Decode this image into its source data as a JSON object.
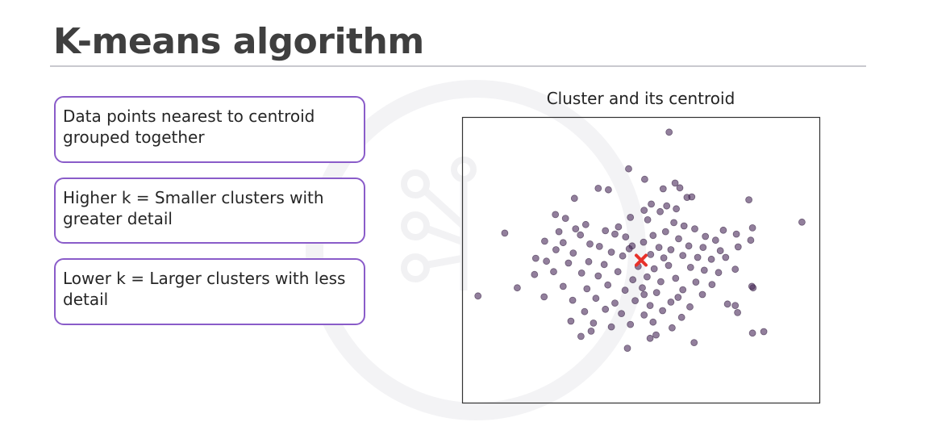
{
  "slide": {
    "title": "K-means algorithm",
    "points": [
      "Data points nearest to centroid grouped together",
      "Higher k = Smaller clusters with greater detail",
      "Lower k = Larger clusters with less detail"
    ]
  },
  "colors": {
    "accent_border": "#8a5cc9",
    "point": "#4a2a5a",
    "centroid": "#e8312a",
    "rule": "#c9c9cf"
  },
  "chart_data": {
    "type": "scatter",
    "title": "Cluster and its centroid",
    "xlabel": "",
    "ylabel": "",
    "xlim": [
      -3.0,
      3.0
    ],
    "ylim": [
      -3.0,
      3.0
    ],
    "axes_ticks_visible": false,
    "grid": false,
    "centroid": {
      "x": 0.0,
      "y": 0.0,
      "marker": "x"
    },
    "points": [
      {
        "x": 0.47,
        "y": 2.69
      },
      {
        "x": -0.21,
        "y": 1.92
      },
      {
        "x": 0.06,
        "y": 1.7
      },
      {
        "x": 0.57,
        "y": 1.62
      },
      {
        "x": 0.65,
        "y": 1.52
      },
      {
        "x": -0.72,
        "y": 1.51
      },
      {
        "x": -0.55,
        "y": 1.48
      },
      {
        "x": 0.37,
        "y": 1.5
      },
      {
        "x": 0.77,
        "y": 1.32
      },
      {
        "x": 0.85,
        "y": 1.33
      },
      {
        "x": -1.12,
        "y": 1.3
      },
      {
        "x": 1.81,
        "y": 1.27
      },
      {
        "x": 0.17,
        "y": 1.18
      },
      {
        "x": 0.05,
        "y": 1.05
      },
      {
        "x": 0.43,
        "y": 1.14
      },
      {
        "x": 0.59,
        "y": 1.08
      },
      {
        "x": 0.32,
        "y": 1.02
      },
      {
        "x": -1.44,
        "y": 0.96
      },
      {
        "x": -1.27,
        "y": 0.88
      },
      {
        "x": 2.7,
        "y": 0.8
      },
      {
        "x": -0.93,
        "y": 0.75
      },
      {
        "x": -0.38,
        "y": 0.7
      },
      {
        "x": -0.18,
        "y": 0.9
      },
      {
        "x": 0.11,
        "y": 0.85
      },
      {
        "x": 0.55,
        "y": 0.79
      },
      {
        "x": 0.72,
        "y": 0.72
      },
      {
        "x": 0.9,
        "y": 0.66
      },
      {
        "x": 1.38,
        "y": 0.63
      },
      {
        "x": 1.6,
        "y": 0.55
      },
      {
        "x": 1.87,
        "y": 0.68
      },
      {
        "x": -1.1,
        "y": 0.66
      },
      {
        "x": -1.38,
        "y": 0.6
      },
      {
        "x": -2.29,
        "y": 0.57
      },
      {
        "x": -1.02,
        "y": 0.53
      },
      {
        "x": -0.6,
        "y": 0.62
      },
      {
        "x": -0.44,
        "y": 0.55
      },
      {
        "x": -0.26,
        "y": 0.49
      },
      {
        "x": 0.2,
        "y": 0.52
      },
      {
        "x": 0.41,
        "y": 0.6
      },
      {
        "x": 0.63,
        "y": 0.45
      },
      {
        "x": 1.08,
        "y": 0.5
      },
      {
        "x": 1.25,
        "y": 0.42
      },
      {
        "x": 1.84,
        "y": 0.42
      },
      {
        "x": -1.62,
        "y": 0.4
      },
      {
        "x": -1.31,
        "y": 0.37
      },
      {
        "x": -0.86,
        "y": 0.34
      },
      {
        "x": -0.7,
        "y": 0.29
      },
      {
        "x": -0.15,
        "y": 0.3
      },
      {
        "x": 0.04,
        "y": 0.38
      },
      {
        "x": 0.3,
        "y": 0.27
      },
      {
        "x": 0.5,
        "y": 0.22
      },
      {
        "x": 0.8,
        "y": 0.3
      },
      {
        "x": 1.04,
        "y": 0.27
      },
      {
        "x": 1.33,
        "y": 0.2
      },
      {
        "x": 1.63,
        "y": 0.28
      },
      {
        "x": -1.43,
        "y": 0.22
      },
      {
        "x": -1.14,
        "y": 0.15
      },
      {
        "x": -0.5,
        "y": 0.17
      },
      {
        "x": -0.31,
        "y": 0.09
      },
      {
        "x": 0.16,
        "y": 0.12
      },
      {
        "x": 0.38,
        "y": 0.05
      },
      {
        "x": 0.7,
        "y": 0.1
      },
      {
        "x": 0.95,
        "y": 0.06
      },
      {
        "x": 1.18,
        "y": 0.02
      },
      {
        "x": 1.42,
        "y": 0.06
      },
      {
        "x": -1.77,
        "y": 0.04
      },
      {
        "x": -1.59,
        "y": -0.02
      },
      {
        "x": -1.22,
        "y": -0.06
      },
      {
        "x": -0.88,
        "y": -0.03
      },
      {
        "x": -0.62,
        "y": -0.09
      },
      {
        "x": -0.05,
        "y": -0.13
      },
      {
        "x": 0.22,
        "y": -0.18
      },
      {
        "x": 0.46,
        "y": -0.11
      },
      {
        "x": 0.83,
        "y": -0.15
      },
      {
        "x": 1.06,
        "y": -0.21
      },
      {
        "x": 1.3,
        "y": -0.26
      },
      {
        "x": 1.58,
        "y": -0.19
      },
      {
        "x": -1.79,
        "y": -0.3
      },
      {
        "x": -1.47,
        "y": -0.24
      },
      {
        "x": -1.0,
        "y": -0.27
      },
      {
        "x": -0.72,
        "y": -0.33
      },
      {
        "x": -0.39,
        "y": -0.24
      },
      {
        "x": -0.14,
        "y": -0.41
      },
      {
        "x": 0.1,
        "y": -0.35
      },
      {
        "x": 0.33,
        "y": -0.45
      },
      {
        "x": 0.58,
        "y": -0.38
      },
      {
        "x": 0.92,
        "y": -0.46
      },
      {
        "x": 1.19,
        "y": -0.51
      },
      {
        "x": -2.08,
        "y": -0.58
      },
      {
        "x": -1.31,
        "y": -0.55
      },
      {
        "x": -0.91,
        "y": -0.6
      },
      {
        "x": -0.56,
        "y": -0.52
      },
      {
        "x": -0.27,
        "y": -0.63
      },
      {
        "x": 0.02,
        "y": -0.58
      },
      {
        "x": 0.26,
        "y": -0.68
      },
      {
        "x": 0.7,
        "y": -0.62
      },
      {
        "x": 1.03,
        "y": -0.72
      },
      {
        "x": 1.88,
        "y": -0.58
      },
      {
        "x": 1.86,
        "y": -0.55
      },
      {
        "x": -2.74,
        "y": -0.75
      },
      {
        "x": -1.63,
        "y": -0.77
      },
      {
        "x": -1.15,
        "y": -0.84
      },
      {
        "x": -0.76,
        "y": -0.8
      },
      {
        "x": -0.44,
        "y": -0.9
      },
      {
        "x": -0.1,
        "y": -0.85
      },
      {
        "x": 0.15,
        "y": -0.95
      },
      {
        "x": 0.5,
        "y": -0.88
      },
      {
        "x": 0.82,
        "y": -0.98
      },
      {
        "x": 1.45,
        "y": -0.92
      },
      {
        "x": 1.58,
        "y": -0.95
      },
      {
        "x": -0.95,
        "y": -1.08
      },
      {
        "x": -0.6,
        "y": -1.03
      },
      {
        "x": -0.33,
        "y": -1.12
      },
      {
        "x": 0.05,
        "y": -1.15
      },
      {
        "x": 0.36,
        "y": -1.06
      },
      {
        "x": 0.68,
        "y": -1.2
      },
      {
        "x": 1.62,
        "y": -1.1
      },
      {
        "x": -1.18,
        "y": -1.28
      },
      {
        "x": -0.8,
        "y": -1.32
      },
      {
        "x": -0.5,
        "y": -1.4
      },
      {
        "x": -0.18,
        "y": -1.35
      },
      {
        "x": 0.2,
        "y": -1.3
      },
      {
        "x": 0.52,
        "y": -1.42
      },
      {
        "x": 1.87,
        "y": -1.53
      },
      {
        "x": 2.06,
        "y": -1.5
      },
      {
        "x": -1.01,
        "y": -1.6
      },
      {
        "x": 0.25,
        "y": -1.57
      },
      {
        "x": 0.15,
        "y": -1.64
      },
      {
        "x": 0.89,
        "y": -1.73
      },
      {
        "x": -0.23,
        "y": -1.85
      },
      {
        "x": -0.84,
        "y": -1.49
      },
      {
        "x": 0.05,
        "y": -0.72
      },
      {
        "x": -0.2,
        "y": 0.24
      },
      {
        "x": 0.62,
        "y": -0.78
      }
    ]
  }
}
